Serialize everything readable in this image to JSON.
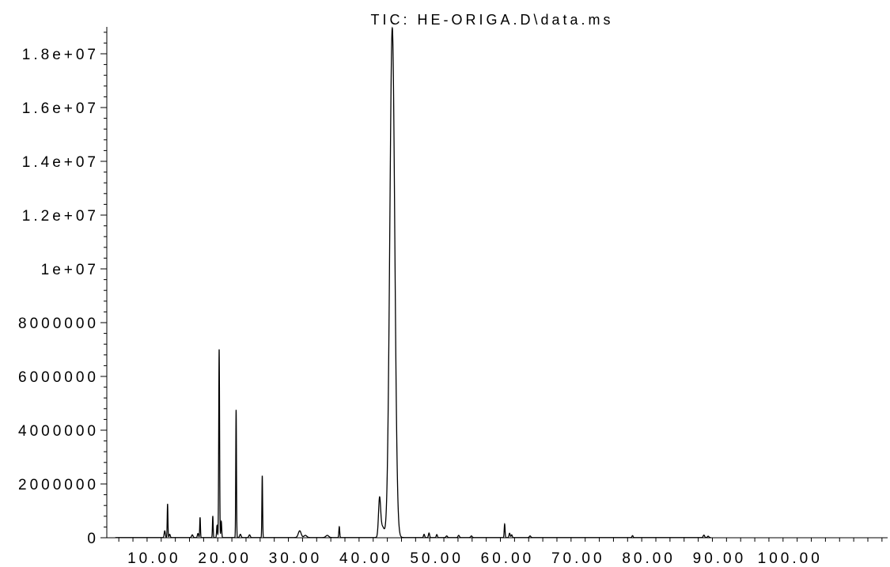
{
  "chart_data": {
    "type": "line",
    "title": "TIC: HE-ORIGA.D\\data.ms",
    "xlabel": "",
    "ylabel": "",
    "xlim": [
      3.3,
      113.8
    ],
    "ylim": [
      0,
      19000000
    ],
    "x_ticks": [
      10,
      20,
      30,
      40,
      50,
      60,
      70,
      80,
      90,
      100
    ],
    "x_tick_labels": [
      "10.00",
      "20.00",
      "30.00",
      "40.00",
      "50.00",
      "60.00",
      "70.00",
      "80.00",
      "90.00",
      "100.00"
    ],
    "y_ticks": [
      0,
      2000000,
      4000000,
      6000000,
      8000000,
      10000000,
      12000000,
      14000000,
      16000000,
      18000000
    ],
    "y_tick_labels": [
      "0",
      "2000000",
      "4000000",
      "6000000",
      "8000000",
      "1e+07",
      "1.2e+07",
      "1.4e+07",
      "1.6e+07",
      "1.8e+07"
    ],
    "grid": false,
    "series": [
      {
        "peaks": [
          {
            "rt": 11.5,
            "height": 250000,
            "width": 0.08
          },
          {
            "rt": 11.9,
            "height": 1250000,
            "width": 0.05
          },
          {
            "rt": 12.2,
            "height": 120000,
            "width": 0.08
          },
          {
            "rt": 15.4,
            "height": 100000,
            "width": 0.1
          },
          {
            "rt": 16.2,
            "height": 150000,
            "width": 0.08
          },
          {
            "rt": 16.5,
            "height": 750000,
            "width": 0.05
          },
          {
            "rt": 18.3,
            "height": 800000,
            "width": 0.05
          },
          {
            "rt": 18.9,
            "height": 450000,
            "width": 0.06
          },
          {
            "rt": 19.2,
            "height": 7000000,
            "width": 0.06
          },
          {
            "rt": 19.5,
            "height": 600000,
            "width": 0.06
          },
          {
            "rt": 21.6,
            "height": 4750000,
            "width": 0.05
          },
          {
            "rt": 22.2,
            "height": 120000,
            "width": 0.1
          },
          {
            "rt": 23.5,
            "height": 100000,
            "width": 0.1
          },
          {
            "rt": 25.3,
            "height": 2300000,
            "width": 0.05
          },
          {
            "rt": 30.6,
            "height": 250000,
            "width": 0.2
          },
          {
            "rt": 31.4,
            "height": 80000,
            "width": 0.2
          },
          {
            "rt": 34.5,
            "height": 80000,
            "width": 0.2
          },
          {
            "rt": 36.2,
            "height": 400000,
            "width": 0.06
          },
          {
            "rt": 41.9,
            "height": 1400000,
            "width": 0.15
          },
          {
            "rt": 42.3,
            "height": 400000,
            "width": 0.25
          },
          {
            "rt": 43.7,
            "height": 18950000,
            "width": 0.35
          },
          {
            "rt": 48.2,
            "height": 120000,
            "width": 0.08
          },
          {
            "rt": 48.9,
            "height": 170000,
            "width": 0.08
          },
          {
            "rt": 50.0,
            "height": 110000,
            "width": 0.08
          },
          {
            "rt": 51.4,
            "height": 60000,
            "width": 0.1
          },
          {
            "rt": 53.1,
            "height": 80000,
            "width": 0.1
          },
          {
            "rt": 54.9,
            "height": 60000,
            "width": 0.1
          },
          {
            "rt": 59.6,
            "height": 500000,
            "width": 0.06
          },
          {
            "rt": 60.3,
            "height": 160000,
            "width": 0.08
          },
          {
            "rt": 60.6,
            "height": 100000,
            "width": 0.08
          },
          {
            "rt": 63.2,
            "height": 60000,
            "width": 0.1
          },
          {
            "rt": 77.7,
            "height": 70000,
            "width": 0.08
          },
          {
            "rt": 87.8,
            "height": 90000,
            "width": 0.1
          },
          {
            "rt": 88.4,
            "height": 50000,
            "width": 0.1
          }
        ]
      }
    ]
  },
  "colors": {
    "line": "#000000",
    "background": "#ffffff"
  }
}
